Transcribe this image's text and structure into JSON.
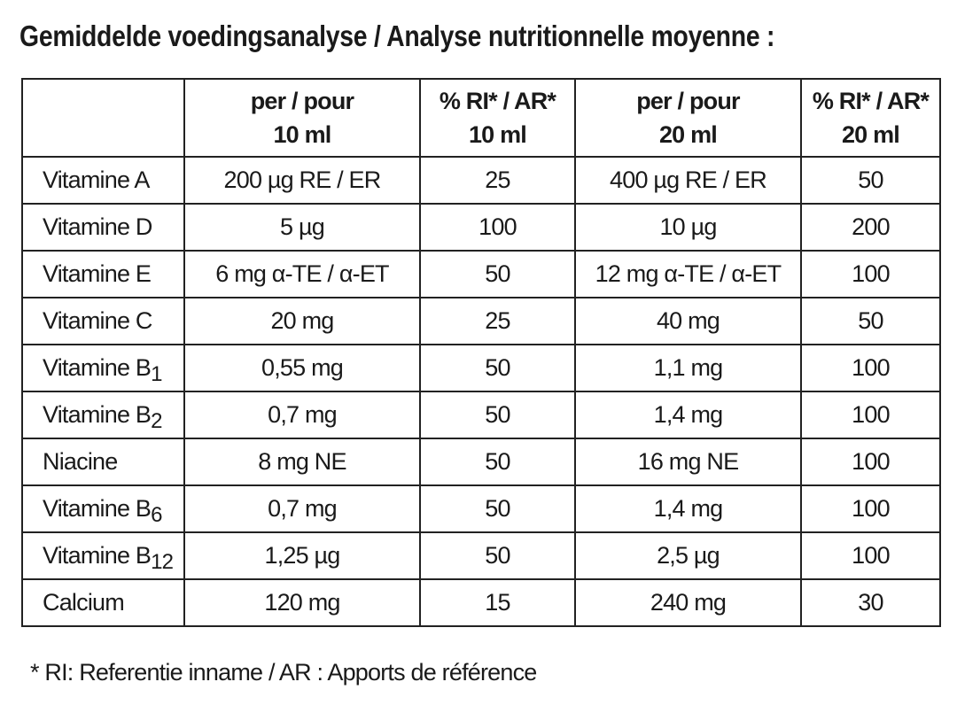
{
  "title": "Gemiddelde voedingsanalyse / Analyse nutritionnelle moyenne :",
  "table": {
    "header": [
      {
        "line1": "per / pour",
        "line2": "10 ml"
      },
      {
        "line1": "% RI* / AR*",
        "line2": "10 ml"
      },
      {
        "line1": "per / pour",
        "line2": "20 ml"
      },
      {
        "line1": "% RI* / AR*",
        "line2": "20 ml"
      }
    ],
    "rows": [
      {
        "name": "Vitamine A",
        "cells": [
          "200 µg RE / ER",
          "25",
          "400 µg RE / ER",
          "50"
        ]
      },
      {
        "name": "Vitamine D",
        "cells": [
          "5 µg",
          "100",
          "10 µg",
          "200"
        ]
      },
      {
        "name": "Vitamine E",
        "cells": [
          "6 mg α-TE / α-ET",
          "50",
          "12 mg α-TE / α-ET",
          "100"
        ]
      },
      {
        "name": "Vitamine C",
        "cells": [
          "20 mg",
          "25",
          "40 mg",
          "50"
        ]
      },
      {
        "name": "Vitamine B",
        "sub": "1",
        "cells": [
          "0,55 mg",
          "50",
          "1,1 mg",
          "100"
        ]
      },
      {
        "name": "Vitamine B",
        "sub": "2",
        "cells": [
          "0,7 mg",
          "50",
          "1,4 mg",
          "100"
        ]
      },
      {
        "name": "Niacine",
        "cells": [
          "8 mg NE",
          "50",
          "16 mg NE",
          "100"
        ]
      },
      {
        "name": "Vitamine B",
        "sub": "6",
        "cells": [
          "0,7 mg",
          "50",
          "1,4 mg",
          "100"
        ]
      },
      {
        "name": "Vitamine B",
        "sub": "12",
        "cells": [
          "1,25 µg",
          "50",
          "2,5 µg",
          "100"
        ]
      },
      {
        "name": "Calcium",
        "cells": [
          "120 mg",
          "15",
          "240 mg",
          "30"
        ]
      }
    ]
  },
  "footnote": "* RI: Referentie inname / AR : Apports de référence"
}
